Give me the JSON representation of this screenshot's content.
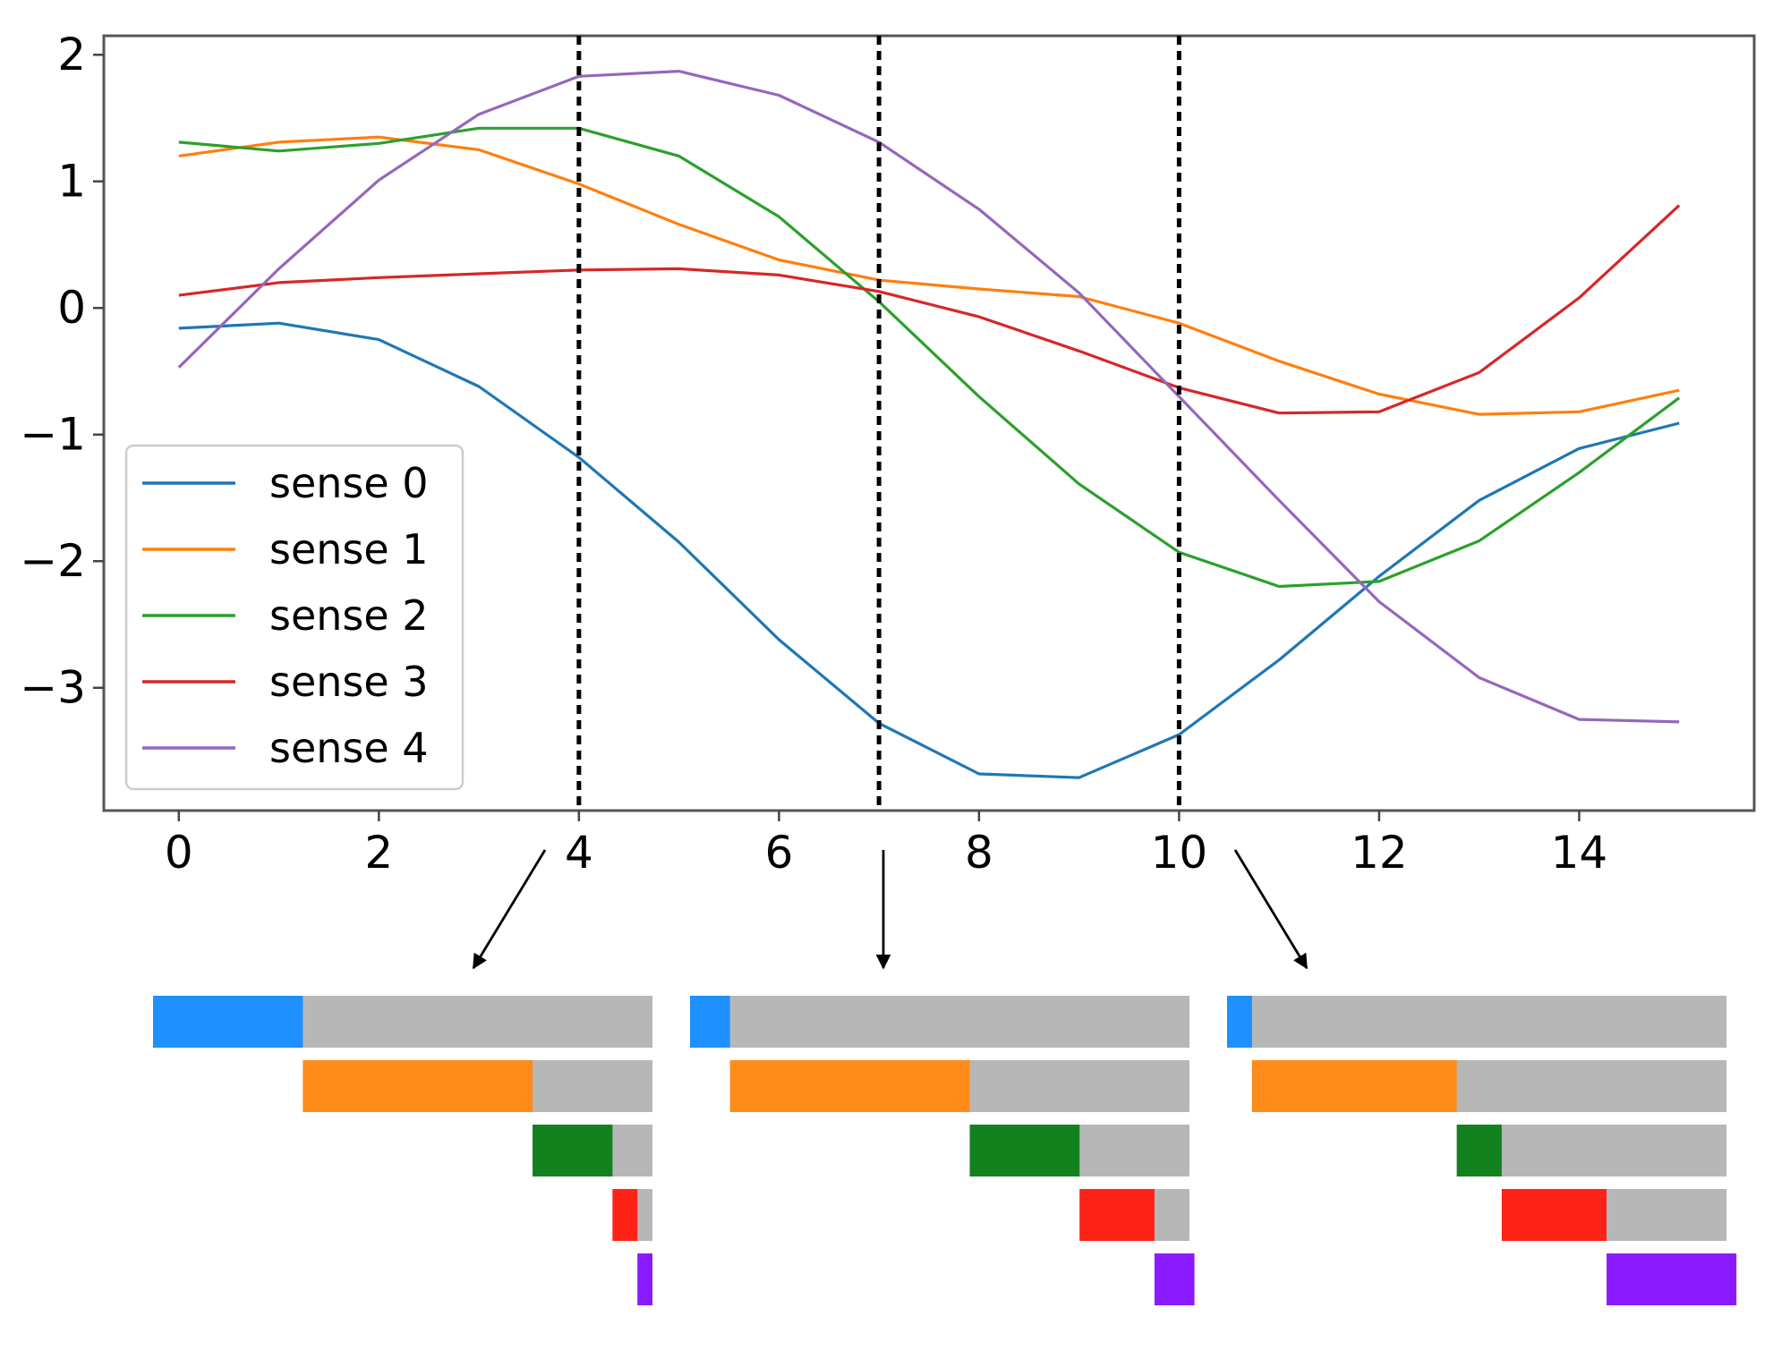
{
  "chart_data": [
    {
      "type": "line",
      "x": [
        0,
        1,
        2,
        3,
        4,
        5,
        6,
        7,
        8,
        9,
        10,
        11,
        12,
        13,
        14,
        15
      ],
      "xlim": [
        -0.75,
        15.75
      ],
      "ylim": [
        -3.97,
        2.15
      ],
      "xticks": [
        0,
        2,
        4,
        6,
        8,
        10,
        12,
        14
      ],
      "yticks": [
        2,
        1,
        0,
        -1,
        -2,
        -3
      ],
      "xtick_labels": [
        "0",
        "2",
        "4",
        "6",
        "8",
        "10",
        "12",
        "14"
      ],
      "ytick_labels": [
        "2",
        "1",
        "0",
        "−1",
        "−2",
        "−3"
      ],
      "grid": false,
      "legend_position": "lower-left",
      "vlines": [
        4,
        7,
        10
      ],
      "series": [
        {
          "name": "sense 0",
          "color": "#1f77b4",
          "values": [
            -0.16,
            -0.12,
            -0.25,
            -0.62,
            -1.18,
            -1.85,
            -2.62,
            -3.28,
            -3.68,
            -3.71,
            -3.37,
            -2.78,
            -2.12,
            -1.52,
            -1.11,
            -0.91
          ]
        },
        {
          "name": "sense 1",
          "color": "#ff7f0e",
          "values": [
            1.2,
            1.31,
            1.35,
            1.25,
            0.98,
            0.66,
            0.38,
            0.22,
            0.15,
            0.09,
            -0.12,
            -0.42,
            -0.68,
            -0.84,
            -0.82,
            -0.65
          ]
        },
        {
          "name": "sense 2",
          "color": "#2ca02c",
          "values": [
            1.31,
            1.24,
            1.3,
            1.42,
            1.42,
            1.2,
            0.72,
            0.05,
            -0.7,
            -1.39,
            -1.93,
            -2.2,
            -2.16,
            -1.84,
            -1.3,
            -0.71
          ]
        },
        {
          "name": "sense 3",
          "color": "#d62728",
          "values": [
            0.1,
            0.2,
            0.24,
            0.27,
            0.3,
            0.31,
            0.26,
            0.13,
            -0.07,
            -0.34,
            -0.63,
            -0.83,
            -0.82,
            -0.51,
            0.08,
            0.81
          ]
        },
        {
          "name": "sense 4",
          "color": "#9467bd",
          "values": [
            -0.47,
            0.31,
            1.01,
            1.53,
            1.83,
            1.87,
            1.68,
            1.31,
            0.78,
            0.12,
            -0.7,
            -1.52,
            -2.32,
            -2.92,
            -3.25,
            -3.27
          ]
        }
      ]
    },
    {
      "type": "bar",
      "orientation": "horizontal",
      "layout": "stacked-steps",
      "panels": [
        {
          "label": "4",
          "categories": [
            "sense 0",
            "sense 1",
            "sense 2",
            "sense 3",
            "sense 4"
          ],
          "values": [
            0.3,
            0.46,
            0.16,
            0.05,
            0.03
          ],
          "colors": [
            "#1e90ff",
            "#ff8c1a",
            "#13821e",
            "#ff2216",
            "#8c1aff"
          ]
        },
        {
          "label": "7",
          "categories": [
            "sense 0",
            "sense 1",
            "sense 2",
            "sense 3",
            "sense 4"
          ],
          "values": [
            0.08,
            0.48,
            0.22,
            0.15,
            0.08
          ],
          "colors": [
            "#1e90ff",
            "#ff8c1a",
            "#13821e",
            "#ff2216",
            "#8c1aff"
          ]
        },
        {
          "label": "10",
          "categories": [
            "sense 0",
            "sense 1",
            "sense 2",
            "sense 3",
            "sense 4"
          ],
          "values": [
            0.05,
            0.41,
            0.09,
            0.21,
            0.26
          ],
          "colors": [
            "#1e90ff",
            "#ff8c1a",
            "#13821e",
            "#ff2216",
            "#8c1aff"
          ]
        }
      ]
    }
  ]
}
